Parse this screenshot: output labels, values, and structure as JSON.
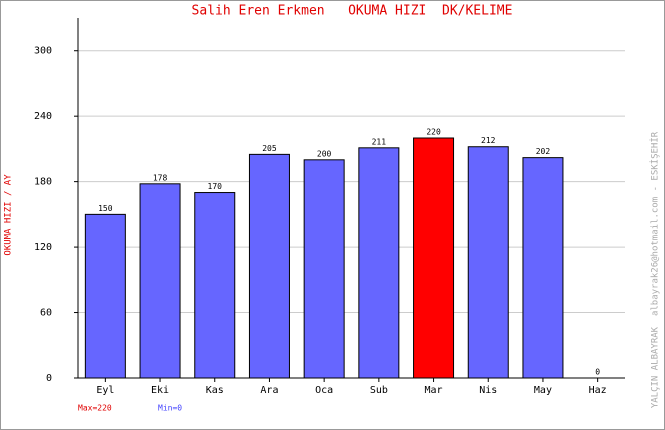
{
  "chart_data": {
    "type": "bar",
    "title": "Salih Eren Erkmen   OKUMA HIZI  DK/KELIME",
    "y_label": "OKUMA HIZI / AY",
    "side_note": "YALÇIN ALBAYRAK  albayrak26@hotmail.com - ESKİŞEHİR",
    "max_note": "Max=220",
    "min_note": "Min=0",
    "categories": [
      "Eyl",
      "Eki",
      "Kas",
      "Ara",
      "Oca",
      "Sub",
      "Mar",
      "Nis",
      "May",
      "Haz"
    ],
    "values": [
      150,
      178,
      170,
      205,
      200,
      211,
      220,
      212,
      202,
      0
    ],
    "colors": [
      "#6666ff",
      "#6666ff",
      "#6666ff",
      "#6666ff",
      "#6666ff",
      "#6666ff",
      "#ff0000",
      "#6666ff",
      "#6666ff",
      "#6666ff"
    ],
    "ylim": [
      0,
      330
    ],
    "yticks": [
      0,
      60,
      120,
      180,
      240,
      300
    ],
    "grid": true
  }
}
